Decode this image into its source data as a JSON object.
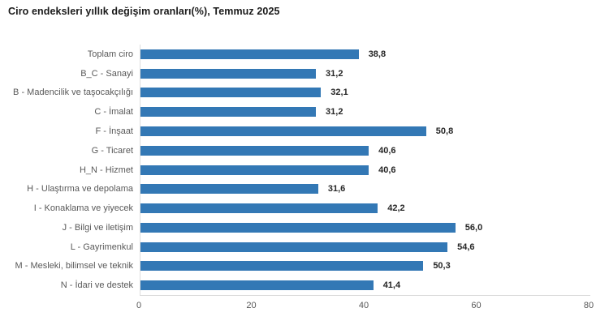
{
  "chart_data": {
    "type": "bar",
    "orientation": "horizontal",
    "title": "Ciro endeksleri yıllık değişim oranları(%), Temmuz 2025",
    "categories": [
      "Toplam ciro",
      "B_C - Sanayi",
      "B - Madencilik ve taşocakçılığı",
      "C - İmalat",
      "F - İnşaat",
      "G - Ticaret",
      "H_N - Hizmet",
      "H - Ulaştırma ve depolama",
      "I - Konaklama ve yiyecek",
      "J - Bilgi ve iletişim",
      "L - Gayrimenkul",
      "M - Mesleki, bilimsel ve teknik",
      "N - İdari ve destek"
    ],
    "values": [
      38.8,
      31.2,
      32.1,
      31.2,
      50.8,
      40.6,
      40.6,
      31.6,
      42.2,
      56.0,
      54.6,
      50.3,
      41.4
    ],
    "value_labels": [
      "38,8",
      "31,2",
      "32,1",
      "31,2",
      "50,8",
      "40,6",
      "40,6",
      "31,6",
      "42,2",
      "56,0",
      "54,6",
      "50,3",
      "41,4"
    ],
    "x_ticks": [
      "0",
      "20",
      "40",
      "60",
      "80"
    ],
    "xlim": [
      0,
      80
    ],
    "xlabel": "",
    "ylabel": "",
    "grid": false,
    "legend_position": "none",
    "bar_color": "#3378b5",
    "title_color": "#1a1a1a",
    "category_label_color": "#595959",
    "value_label_color": "#262626",
    "tick_label_color": "#595959",
    "axis_line_color": "#d9d9d9"
  }
}
